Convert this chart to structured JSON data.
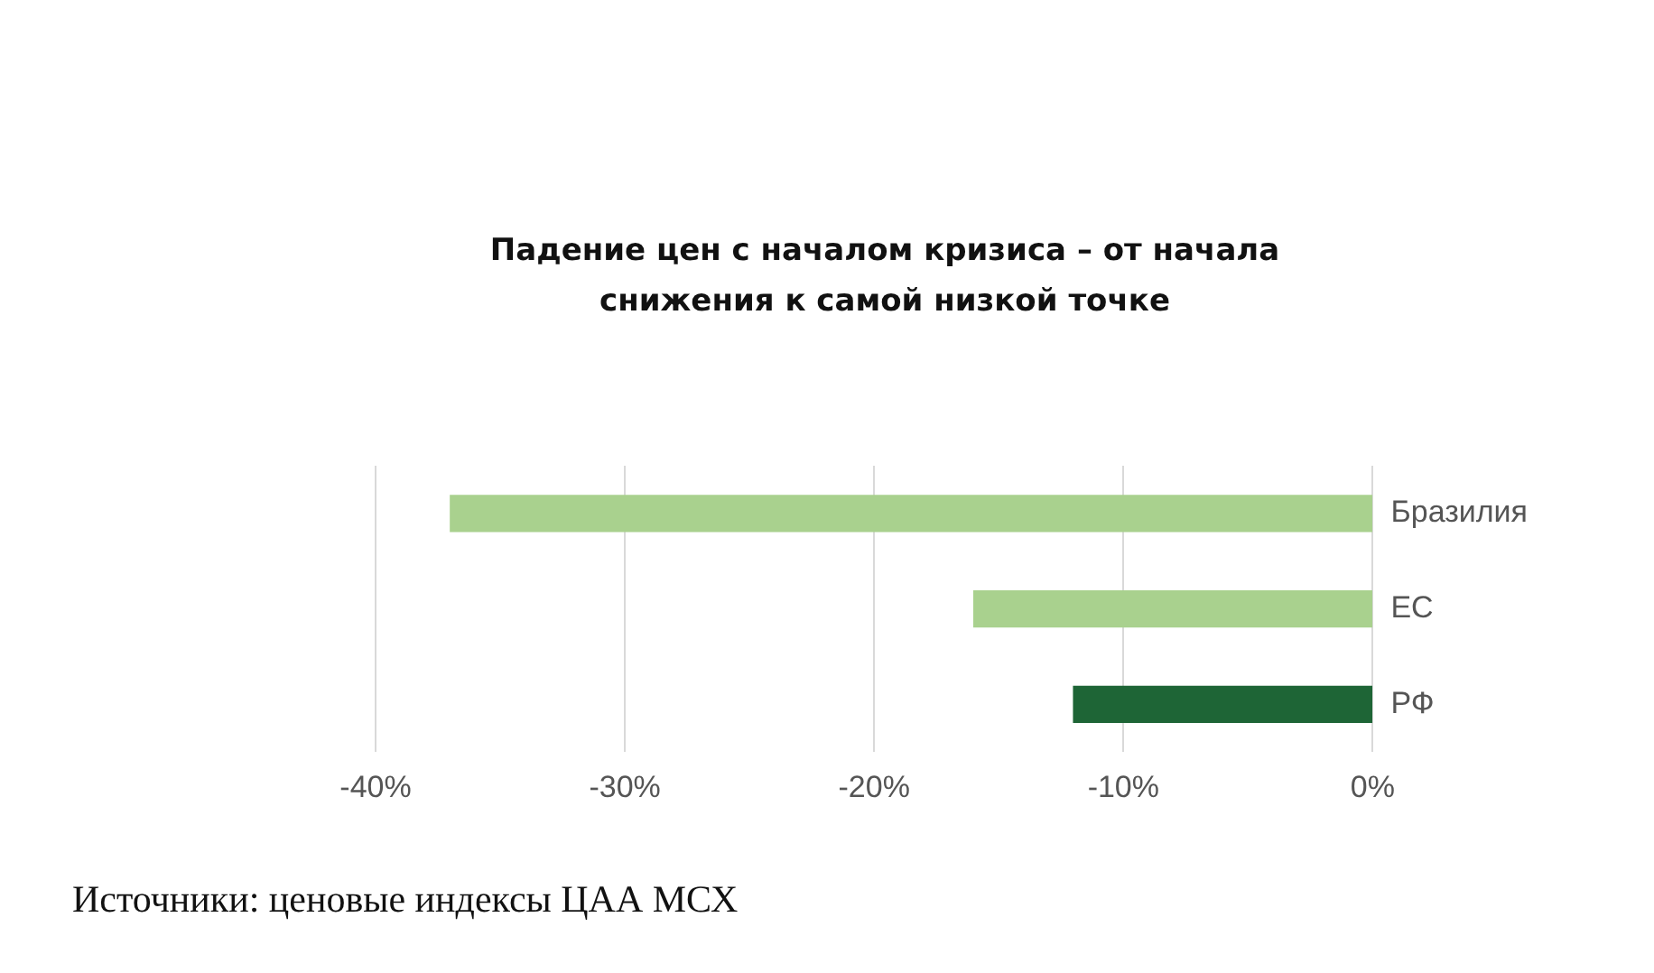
{
  "chart_data": {
    "type": "bar",
    "orientation": "horizontal",
    "title": "Падение цен с началом кризиса – от начала снижения к самой низкой точке",
    "categories": [
      "Бразилия",
      "ЕС",
      "РФ"
    ],
    "values": [
      -37,
      -16,
      -12
    ],
    "colors": [
      "#a9d18e",
      "#a9d18e",
      "#1e6536"
    ],
    "xlim": [
      -40,
      0
    ],
    "xticks": [
      {
        "value": -40,
        "label": "-40%"
      },
      {
        "value": -30,
        "label": "-30%"
      },
      {
        "value": -20,
        "label": "-20%"
      },
      {
        "value": -10,
        "label": "-10%"
      },
      {
        "value": 0,
        "label": "0%"
      }
    ],
    "grid": "x",
    "annotations": [
      "Источники: ценовые индексы ЦАА МСХ"
    ]
  }
}
